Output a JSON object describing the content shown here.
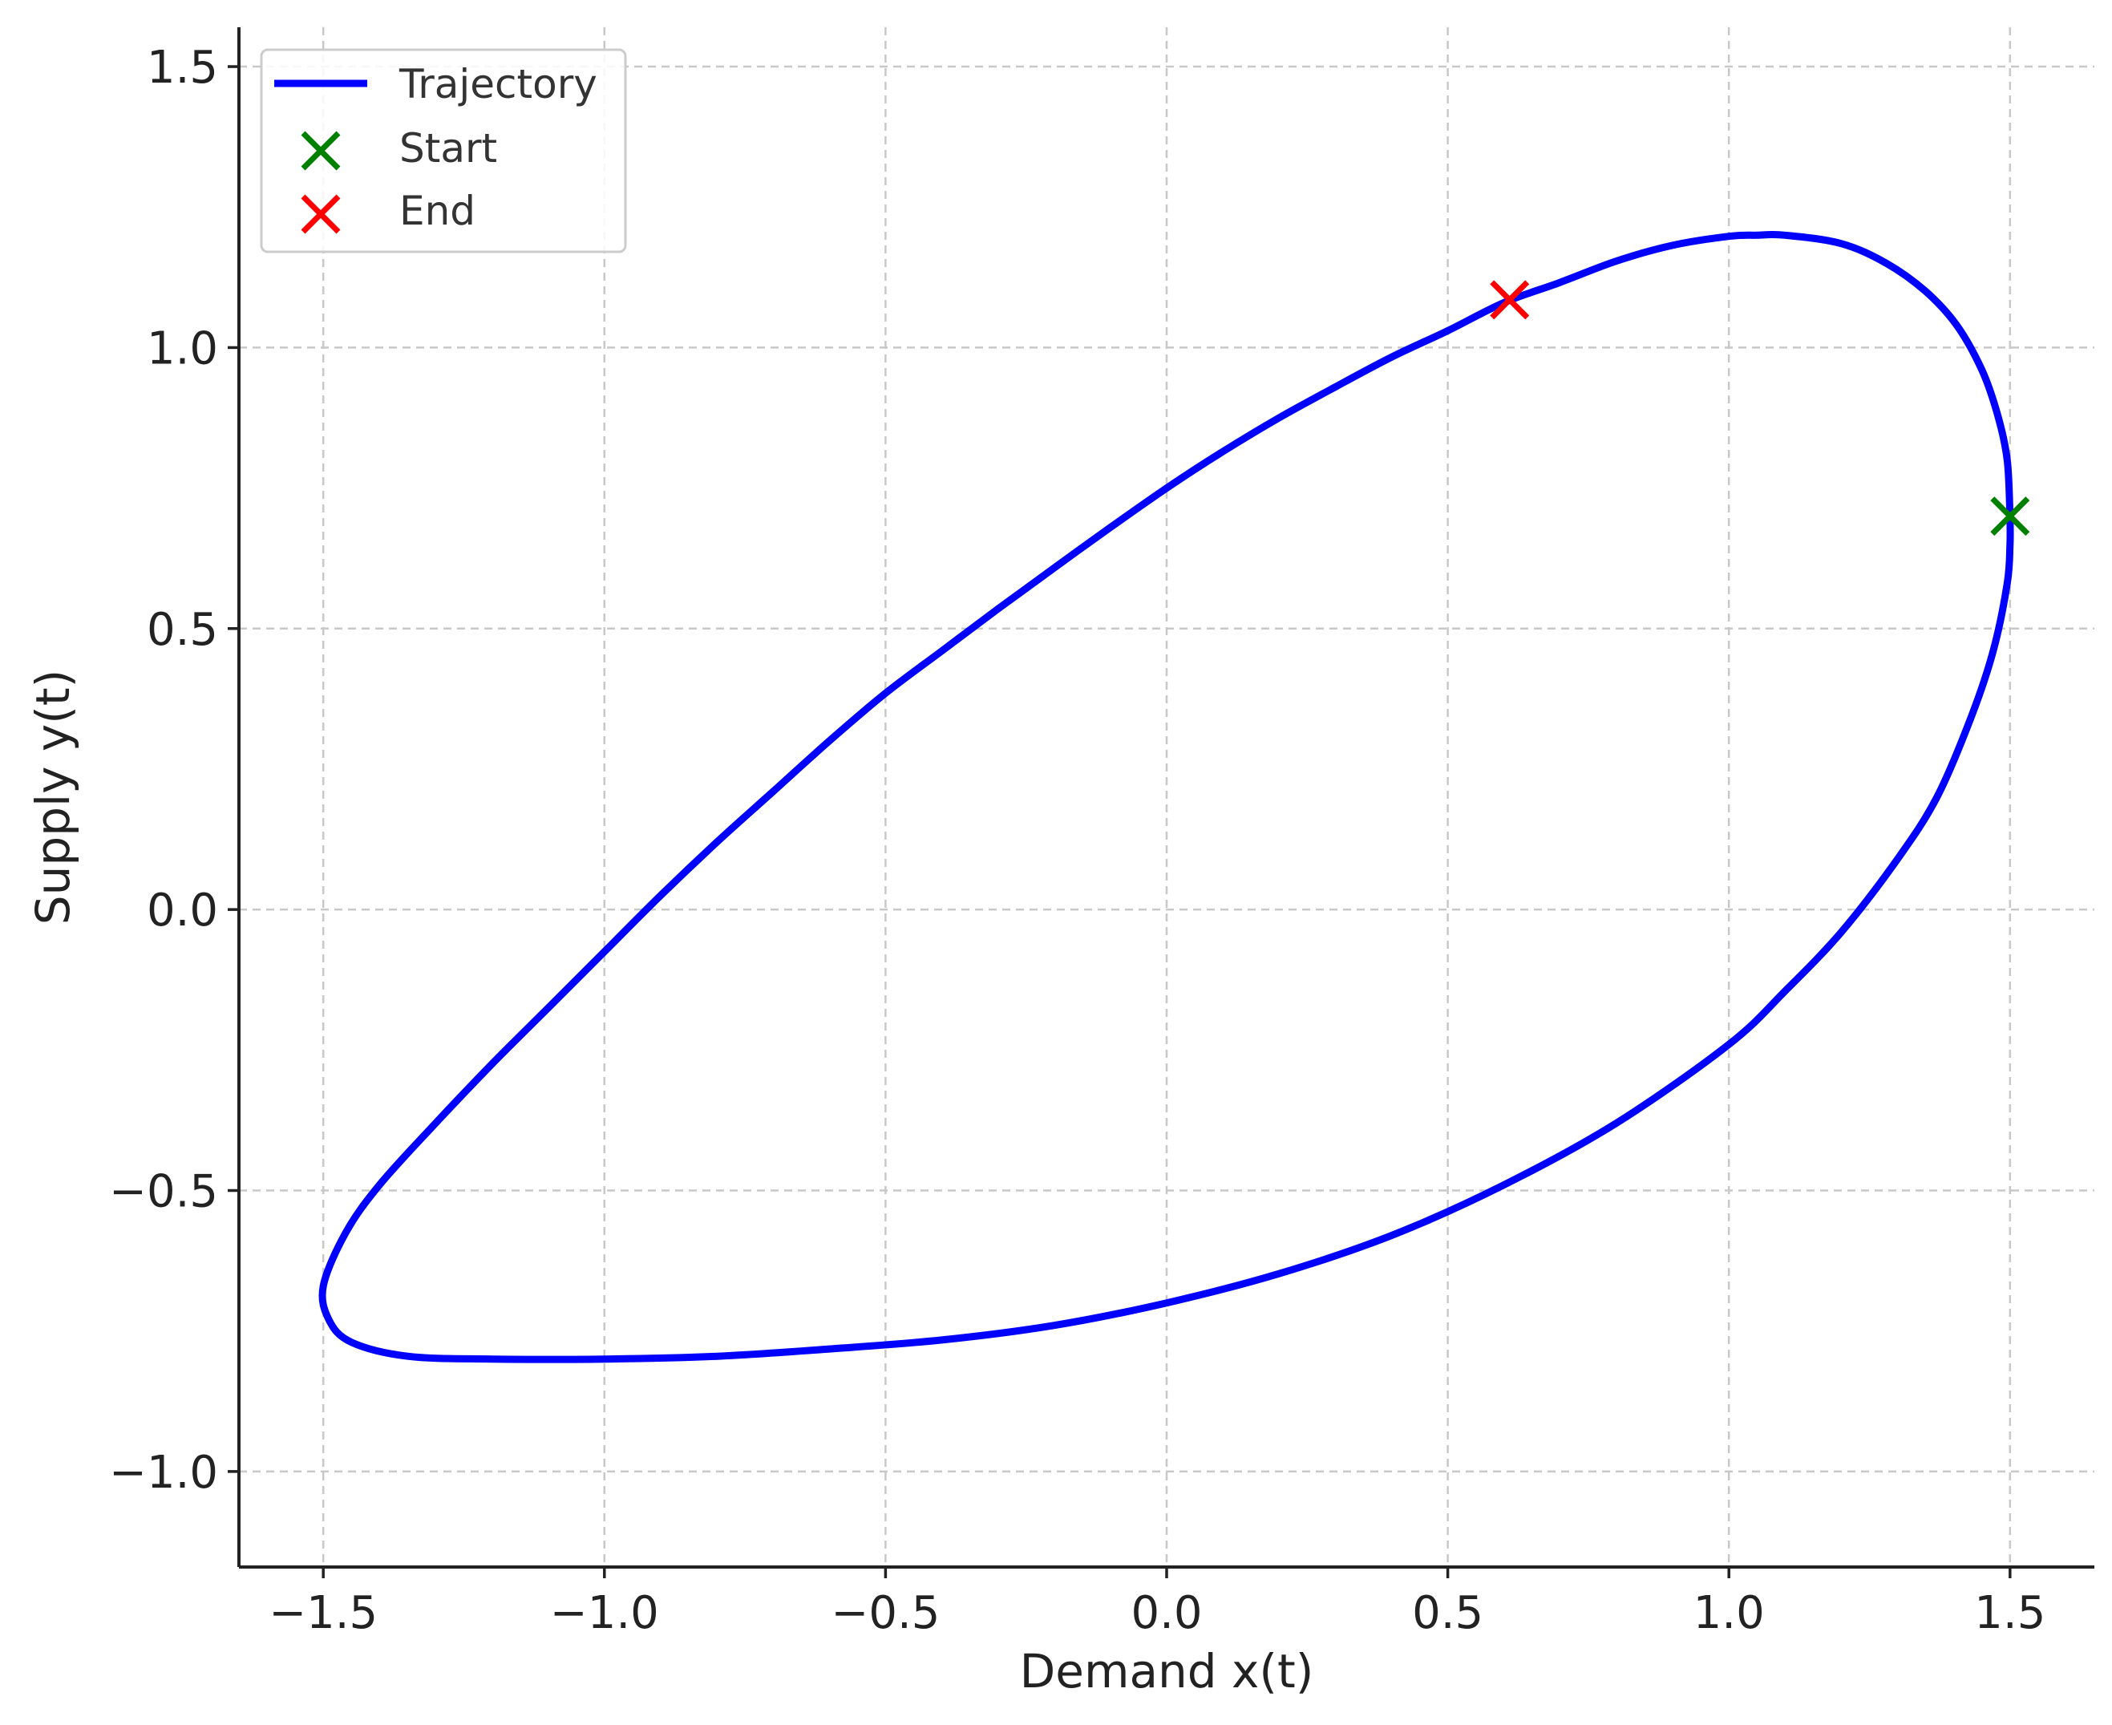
{
  "chart_data": {
    "type": "line",
    "title": "",
    "xlabel": "Demand x(t)",
    "ylabel": "Supply y(t)",
    "xlim": [
      -1.65,
      1.65
    ],
    "ylim": [
      -1.17,
      1.57
    ],
    "x_ticks": [
      -1.5,
      -1.0,
      -0.5,
      0.0,
      0.5,
      1.0,
      1.5
    ],
    "x_tick_labels": [
      "−1.5",
      "−1.0",
      "−0.5",
      "0.0",
      "0.5",
      "1.0",
      "1.5"
    ],
    "y_ticks": [
      -1.0,
      -0.5,
      0.0,
      0.5,
      1.0,
      1.5
    ],
    "y_tick_labels": [
      "−1.0",
      "−0.5",
      "0.0",
      "0.5",
      "1.0",
      "1.5"
    ],
    "grid": true,
    "legend_position": "top-left",
    "series": [
      {
        "name": "Trajectory",
        "kind": "line",
        "color": "#0000ff",
        "points": [
          [
            1.5,
            0.7
          ],
          [
            1.495,
            0.8
          ],
          [
            1.478,
            0.88
          ],
          [
            1.45,
            0.96
          ],
          [
            1.405,
            1.04
          ],
          [
            1.35,
            1.1
          ],
          [
            1.28,
            1.15
          ],
          [
            1.2,
            1.185
          ],
          [
            1.1,
            1.2
          ],
          [
            1.05,
            1.2
          ],
          [
            1.0,
            1.198
          ],
          [
            0.9,
            1.182
          ],
          [
            0.8,
            1.154
          ],
          [
            0.7,
            1.116
          ],
          [
            0.6,
            1.08
          ],
          [
            0.5,
            1.03
          ],
          [
            0.4,
            0.983
          ],
          [
            0.3,
            0.93
          ],
          [
            0.2,
            0.875
          ],
          [
            0.1,
            0.815
          ],
          [
            0.0,
            0.75
          ],
          [
            -0.1,
            0.68
          ],
          [
            -0.2,
            0.608
          ],
          [
            -0.3,
            0.535
          ],
          [
            -0.4,
            0.46
          ],
          [
            -0.5,
            0.385
          ],
          [
            -0.6,
            0.3
          ],
          [
            -0.7,
            0.21
          ],
          [
            -0.8,
            0.12
          ],
          [
            -0.9,
            0.025
          ],
          [
            -1.0,
            -0.075
          ],
          [
            -1.1,
            -0.175
          ],
          [
            -1.2,
            -0.275
          ],
          [
            -1.3,
            -0.38
          ],
          [
            -1.4,
            -0.49
          ],
          [
            -1.46,
            -0.575
          ],
          [
            -1.5,
            -0.67
          ],
          [
            -1.49,
            -0.73
          ],
          [
            -1.45,
            -0.77
          ],
          [
            -1.35,
            -0.795
          ],
          [
            -1.2,
            -0.8
          ],
          [
            -1.0,
            -0.8
          ],
          [
            -0.8,
            -0.795
          ],
          [
            -0.6,
            -0.782
          ],
          [
            -0.4,
            -0.766
          ],
          [
            -0.2,
            -0.74
          ],
          [
            0.0,
            -0.7
          ],
          [
            0.2,
            -0.648
          ],
          [
            0.4,
            -0.58
          ],
          [
            0.6,
            -0.49
          ],
          [
            0.8,
            -0.38
          ],
          [
            1.0,
            -0.24
          ],
          [
            1.1,
            -0.145
          ],
          [
            1.2,
            -0.04
          ],
          [
            1.3,
            0.09
          ],
          [
            1.37,
            0.2
          ],
          [
            1.43,
            0.34
          ],
          [
            1.47,
            0.46
          ],
          [
            1.495,
            0.58
          ],
          [
            1.5,
            0.65
          ],
          [
            1.5,
            0.7
          ]
        ]
      },
      {
        "name": "Start",
        "kind": "marker",
        "marker": "x",
        "color": "#008000",
        "x": 1.5,
        "y": 0.7
      },
      {
        "name": "End",
        "kind": "marker",
        "marker": "x",
        "color": "#ff0000",
        "x": 0.61,
        "y": 1.085
      }
    ]
  }
}
